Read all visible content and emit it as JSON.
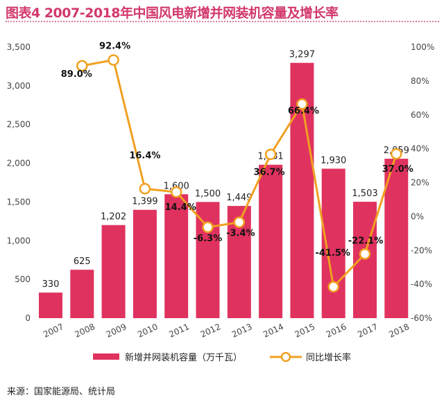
{
  "title": "图表4 2007-2018年中国风电新增并网装机容量及增长率",
  "source": "来源：国家能源局、统计局",
  "colors": {
    "bar": "#e0325f",
    "line": "#f0a020",
    "title": "#d2386b"
  },
  "chart_data": {
    "type": "bar+line",
    "categories": [
      "2007",
      "2008",
      "2009",
      "2010",
      "2011",
      "2012",
      "2013",
      "2014",
      "2015",
      "2016",
      "2017",
      "2018"
    ],
    "series": [
      {
        "name": "新增并网装机容量（万千瓦）",
        "type": "bar",
        "axis": "left",
        "values": [
          330,
          625,
          1202,
          1399,
          1600,
          1500,
          1449,
          1981,
          3297,
          1930,
          1503,
          2059
        ],
        "labels": [
          "330",
          "625",
          "1,202",
          "1,399",
          "1,600",
          "1,500",
          "1,449",
          "1,981",
          "3,297",
          "1,930",
          "1,503",
          "2,059"
        ]
      },
      {
        "name": "同比增长率",
        "type": "line",
        "axis": "right",
        "values": [
          89.0,
          92.4,
          16.4,
          14.4,
          -6.3,
          -3.4,
          36.7,
          66.4,
          -41.5,
          -22.1,
          37.0
        ],
        "x": [
          "2008",
          "2009",
          "2010",
          "2011",
          "2012",
          "2013",
          "2014",
          "2015",
          "2016",
          "2017",
          "2018"
        ],
        "labels": [
          "89.0%",
          "92.4%",
          "16.4%",
          "14.4%",
          "-6.3%",
          "-3.4%",
          "36.7%",
          "66.4%",
          "-41.5%",
          "-22.1%",
          "37.0%"
        ]
      }
    ],
    "left_axis": {
      "range": [
        0,
        3500
      ],
      "ticks": [
        "0",
        "500",
        "1,000",
        "1,500",
        "2,000",
        "2,500",
        "3,000",
        "3,500"
      ]
    },
    "right_axis": {
      "range": [
        -60,
        100
      ],
      "ticks": [
        "-60%",
        "-40%",
        "-20%",
        "0%",
        "20%",
        "40%",
        "60%",
        "80%",
        "100%"
      ]
    },
    "grid": false,
    "legend_position": "bottom"
  }
}
